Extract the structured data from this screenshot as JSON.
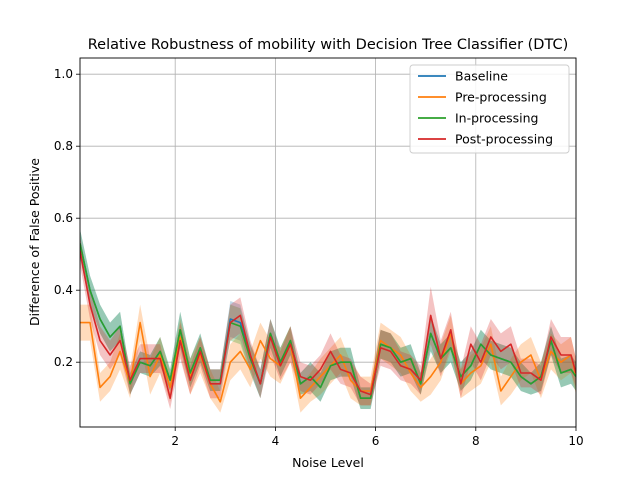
{
  "chart_data": {
    "type": "line",
    "title": "Relative Robustness of mobility with Decision Tree Classifier (DTC)",
    "xlabel": "Noise Level",
    "ylabel": "Difference of False Positive",
    "xlim": [
      0.1,
      10
    ],
    "ylim": [
      0.02,
      1.045
    ],
    "xticks": [
      2,
      4,
      6,
      8,
      10
    ],
    "xtick_labels": [
      "2",
      "4",
      "6",
      "8",
      "10"
    ],
    "yticks": [
      0.2,
      0.4,
      0.6,
      0.8,
      1.0
    ],
    "ytick_labels": [
      "0.2",
      "0.4",
      "0.6",
      "0.8",
      "1.0"
    ],
    "grid": true,
    "legend_position": "top-right",
    "x": [
      0.1,
      0.3,
      0.5,
      0.7,
      0.9,
      1.1,
      1.3,
      1.5,
      1.7,
      1.9,
      2.1,
      2.3,
      2.5,
      2.7,
      2.9,
      3.1,
      3.3,
      3.5,
      3.7,
      3.9,
      4.1,
      4.3,
      4.5,
      4.7,
      4.9,
      5.1,
      5.3,
      5.5,
      5.7,
      5.9,
      6.1,
      6.3,
      6.5,
      6.7,
      6.9,
      7.1,
      7.3,
      7.5,
      7.7,
      7.9,
      8.1,
      8.3,
      8.5,
      8.7,
      8.9,
      9.1,
      9.3,
      9.5,
      9.7,
      9.9,
      10.0
    ],
    "series": [
      {
        "name": "Baseline",
        "color": "#1f77b4",
        "values": [
          0.53,
          0.4,
          0.32,
          0.27,
          0.3,
          0.14,
          0.2,
          0.19,
          0.23,
          0.15,
          0.29,
          0.17,
          0.24,
          0.15,
          0.15,
          0.32,
          0.31,
          0.21,
          0.14,
          0.28,
          0.2,
          0.26,
          0.14,
          0.16,
          0.13,
          0.19,
          0.2,
          0.2,
          0.1,
          0.1,
          0.25,
          0.24,
          0.2,
          0.21,
          0.14,
          0.28,
          0.21,
          0.24,
          0.16,
          0.19,
          0.25,
          0.22,
          0.21,
          0.2,
          0.16,
          0.14,
          0.16,
          0.26,
          0.17,
          0.18,
          0.16
        ],
        "band": [
          0.04,
          0.04,
          0.04,
          0.04,
          0.04,
          0.03,
          0.03,
          0.03,
          0.04,
          0.03,
          0.05,
          0.04,
          0.04,
          0.03,
          0.03,
          0.05,
          0.05,
          0.04,
          0.04,
          0.04,
          0.04,
          0.04,
          0.03,
          0.04,
          0.04,
          0.04,
          0.04,
          0.04,
          0.03,
          0.03,
          0.04,
          0.04,
          0.04,
          0.04,
          0.03,
          0.05,
          0.04,
          0.04,
          0.04,
          0.04,
          0.04,
          0.04,
          0.04,
          0.04,
          0.04,
          0.03,
          0.04,
          0.04,
          0.04,
          0.04,
          0.04
        ]
      },
      {
        "name": "Pre-processing",
        "color": "#ff7f0e",
        "values": [
          0.31,
          0.31,
          0.13,
          0.16,
          0.23,
          0.14,
          0.31,
          0.16,
          0.22,
          0.13,
          0.27,
          0.16,
          0.22,
          0.14,
          0.09,
          0.2,
          0.23,
          0.18,
          0.26,
          0.21,
          0.19,
          0.25,
          0.1,
          0.13,
          0.16,
          0.19,
          0.22,
          0.15,
          0.12,
          0.12,
          0.26,
          0.24,
          0.22,
          0.17,
          0.13,
          0.16,
          0.2,
          0.28,
          0.14,
          0.17,
          0.19,
          0.25,
          0.12,
          0.16,
          0.2,
          0.22,
          0.15,
          0.23,
          0.2,
          0.22,
          0.16
        ],
        "band": [
          0.05,
          0.05,
          0.04,
          0.04,
          0.05,
          0.04,
          0.05,
          0.05,
          0.05,
          0.04,
          0.05,
          0.05,
          0.05,
          0.04,
          0.03,
          0.05,
          0.05,
          0.05,
          0.05,
          0.05,
          0.05,
          0.05,
          0.04,
          0.04,
          0.05,
          0.05,
          0.05,
          0.05,
          0.04,
          0.04,
          0.05,
          0.05,
          0.05,
          0.05,
          0.04,
          0.05,
          0.05,
          0.05,
          0.04,
          0.05,
          0.05,
          0.05,
          0.04,
          0.05,
          0.05,
          0.05,
          0.05,
          0.05,
          0.05,
          0.05,
          0.05
        ]
      },
      {
        "name": "In-processing",
        "color": "#2ca02c",
        "values": [
          0.53,
          0.4,
          0.32,
          0.27,
          0.3,
          0.14,
          0.2,
          0.19,
          0.23,
          0.15,
          0.29,
          0.17,
          0.24,
          0.15,
          0.15,
          0.31,
          0.3,
          0.21,
          0.14,
          0.28,
          0.2,
          0.26,
          0.14,
          0.16,
          0.13,
          0.19,
          0.2,
          0.2,
          0.1,
          0.1,
          0.25,
          0.24,
          0.2,
          0.21,
          0.14,
          0.28,
          0.21,
          0.24,
          0.16,
          0.19,
          0.25,
          0.22,
          0.21,
          0.2,
          0.16,
          0.14,
          0.16,
          0.26,
          0.17,
          0.18,
          0.16
        ],
        "band": [
          0.04,
          0.04,
          0.04,
          0.04,
          0.04,
          0.03,
          0.03,
          0.03,
          0.04,
          0.03,
          0.05,
          0.04,
          0.04,
          0.03,
          0.03,
          0.05,
          0.05,
          0.04,
          0.04,
          0.04,
          0.04,
          0.04,
          0.03,
          0.04,
          0.04,
          0.04,
          0.04,
          0.04,
          0.03,
          0.03,
          0.04,
          0.04,
          0.04,
          0.04,
          0.03,
          0.05,
          0.04,
          0.04,
          0.04,
          0.04,
          0.04,
          0.04,
          0.04,
          0.04,
          0.04,
          0.03,
          0.04,
          0.04,
          0.04,
          0.04,
          0.04
        ]
      },
      {
        "name": "Post-processing",
        "color": "#d62728",
        "values": [
          0.51,
          0.36,
          0.26,
          0.22,
          0.26,
          0.15,
          0.21,
          0.21,
          0.21,
          0.1,
          0.26,
          0.15,
          0.23,
          0.14,
          0.14,
          0.31,
          0.33,
          0.22,
          0.14,
          0.27,
          0.19,
          0.25,
          0.16,
          0.15,
          0.18,
          0.23,
          0.18,
          0.17,
          0.12,
          0.11,
          0.24,
          0.23,
          0.19,
          0.18,
          0.15,
          0.33,
          0.21,
          0.29,
          0.14,
          0.25,
          0.2,
          0.27,
          0.23,
          0.25,
          0.17,
          0.17,
          0.15,
          0.27,
          0.22,
          0.22,
          0.17
        ],
        "band": [
          0.04,
          0.04,
          0.04,
          0.04,
          0.04,
          0.04,
          0.04,
          0.04,
          0.04,
          0.03,
          0.05,
          0.04,
          0.04,
          0.04,
          0.04,
          0.05,
          0.05,
          0.04,
          0.04,
          0.05,
          0.04,
          0.05,
          0.04,
          0.04,
          0.04,
          0.05,
          0.04,
          0.04,
          0.04,
          0.03,
          0.05,
          0.05,
          0.04,
          0.04,
          0.04,
          0.08,
          0.05,
          0.05,
          0.04,
          0.05,
          0.05,
          0.05,
          0.05,
          0.05,
          0.04,
          0.04,
          0.04,
          0.05,
          0.05,
          0.05,
          0.04
        ]
      }
    ]
  }
}
